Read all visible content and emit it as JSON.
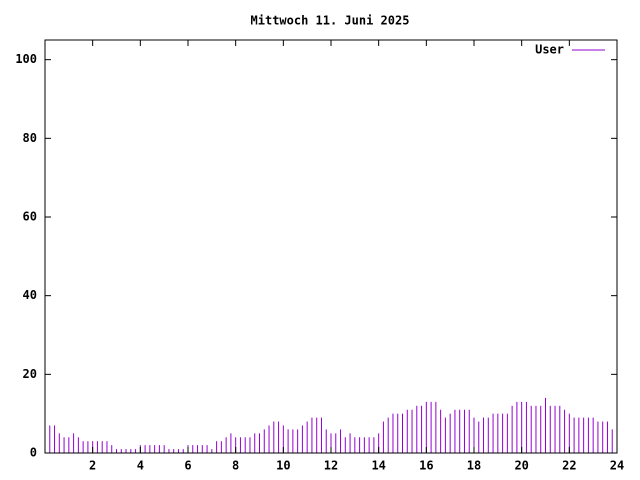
{
  "chart_data": {
    "type": "impulse",
    "title": "Mittwoch 11. Juni 2025",
    "x": [
      0,
      0.2,
      0.4,
      0.6,
      0.8,
      1,
      1.2,
      1.4,
      1.6,
      1.8,
      2,
      2.2,
      2.4,
      2.6,
      2.8,
      3,
      3.2,
      3.4,
      3.6,
      3.8,
      4,
      4.2,
      4.4,
      4.6,
      4.8,
      5,
      5.2,
      5.4,
      5.6,
      5.8,
      6,
      6.2,
      6.4,
      6.6,
      6.8,
      7,
      7.2,
      7.4,
      7.6,
      7.8,
      8,
      8.2,
      8.4,
      8.6,
      8.8,
      9,
      9.2,
      9.4,
      9.6,
      9.8,
      10,
      10.2,
      10.4,
      10.6,
      10.8,
      11,
      11.2,
      11.4,
      11.6,
      11.8,
      12,
      12.2,
      12.4,
      12.6,
      12.8,
      13,
      13.2,
      13.4,
      13.6,
      13.8,
      14,
      14.2,
      14.4,
      14.6,
      14.8,
      15,
      15.2,
      15.4,
      15.6,
      15.8,
      16,
      16.2,
      16.4,
      16.6,
      16.8,
      17,
      17.2,
      17.4,
      17.6,
      17.8,
      18,
      18.2,
      18.4,
      18.6,
      18.8,
      19,
      19.2,
      19.4,
      19.6,
      19.8,
      20,
      20.2,
      20.4,
      20.6,
      20.8,
      21,
      21.2,
      21.4,
      21.6,
      21.8,
      22,
      22.2,
      22.4,
      22.6,
      22.8,
      23,
      23.2,
      23.4,
      23.6,
      23.8
    ],
    "series": [
      {
        "name": "User",
        "color": "#9400d3",
        "values": [
          7,
          7,
          7,
          5,
          4,
          4,
          5,
          4,
          3,
          3,
          3,
          3,
          3,
          3,
          2,
          1,
          1,
          1,
          1,
          1,
          2,
          2,
          2,
          2,
          2,
          2,
          1,
          1,
          1,
          1,
          2,
          2,
          2,
          2,
          2,
          1,
          3,
          3,
          4,
          5,
          4,
          4,
          4,
          4,
          5,
          5,
          6,
          7,
          8,
          8,
          7,
          6,
          6,
          6,
          7,
          8,
          9,
          9,
          9,
          6,
          5,
          5,
          6,
          4,
          5,
          4,
          4,
          4,
          4,
          4,
          5,
          8,
          9,
          10,
          10,
          10,
          11,
          11,
          12,
          12,
          13,
          13,
          13,
          11,
          9,
          10,
          11,
          11,
          11,
          11,
          9,
          8,
          9,
          9,
          10,
          10,
          10,
          10,
          12,
          13,
          13,
          13,
          12,
          12,
          12,
          14,
          12,
          12,
          12,
          11,
          10,
          9,
          9,
          9,
          9,
          9,
          8,
          8,
          8,
          6
        ]
      }
    ],
    "xlim": [
      0,
      24
    ],
    "xticks": [
      2,
      4,
      6,
      8,
      10,
      12,
      14,
      16,
      18,
      20,
      22,
      24
    ],
    "ylim": [
      0,
      105
    ],
    "yticks": [
      0,
      20,
      40,
      60,
      80,
      100
    ],
    "legend": "top-right"
  }
}
